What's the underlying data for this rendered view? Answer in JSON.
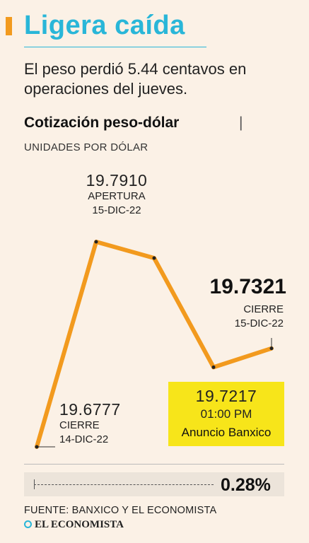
{
  "header": {
    "title": "Ligera caída",
    "subtitle": "El peso perdió 5.44 centavos en operaciones del jueves."
  },
  "chart_header": {
    "title": "Cotización peso-dólar",
    "separator": "|",
    "units": "UNIDADES POR DÓLAR"
  },
  "colors": {
    "line": "#f29a1e",
    "title": "#29b6d8",
    "highlight": "#f7e51a",
    "background": "#fbf1e6"
  },
  "chart_data": {
    "type": "line",
    "title": "Cotización peso-dólar",
    "ylabel": "UNIDADES POR DÓLAR",
    "x": [
      "CIERRE 14-DIC-22",
      "APERTURA 15-DIC-22",
      "",
      "01:00 PM",
      "CIERRE 15-DIC-22"
    ],
    "values": [
      19.6777,
      19.791,
      19.782,
      19.7217,
      19.7321
    ],
    "ylim": [
      19.665,
      19.795
    ],
    "annotations": {
      "p0": {
        "value": "19.6777",
        "label": "CIERRE",
        "date": "14-DIC-22"
      },
      "p1": {
        "value": "19.7910",
        "label": "APERTURA",
        "date": "15-DIC-22"
      },
      "p3": {
        "value": "19.7217",
        "time": "01:00 PM",
        "note": "Anuncio Banxico"
      },
      "p4": {
        "value": "19.7321",
        "label": "CIERRE",
        "date": "15-DIC-22"
      }
    }
  },
  "change": {
    "value": "0.28%",
    "fraction": 0.28
  },
  "footer": {
    "source": "FUENTE: BANXICO Y EL ECONOMISTA",
    "logo": "EL ECONOMISTA"
  }
}
